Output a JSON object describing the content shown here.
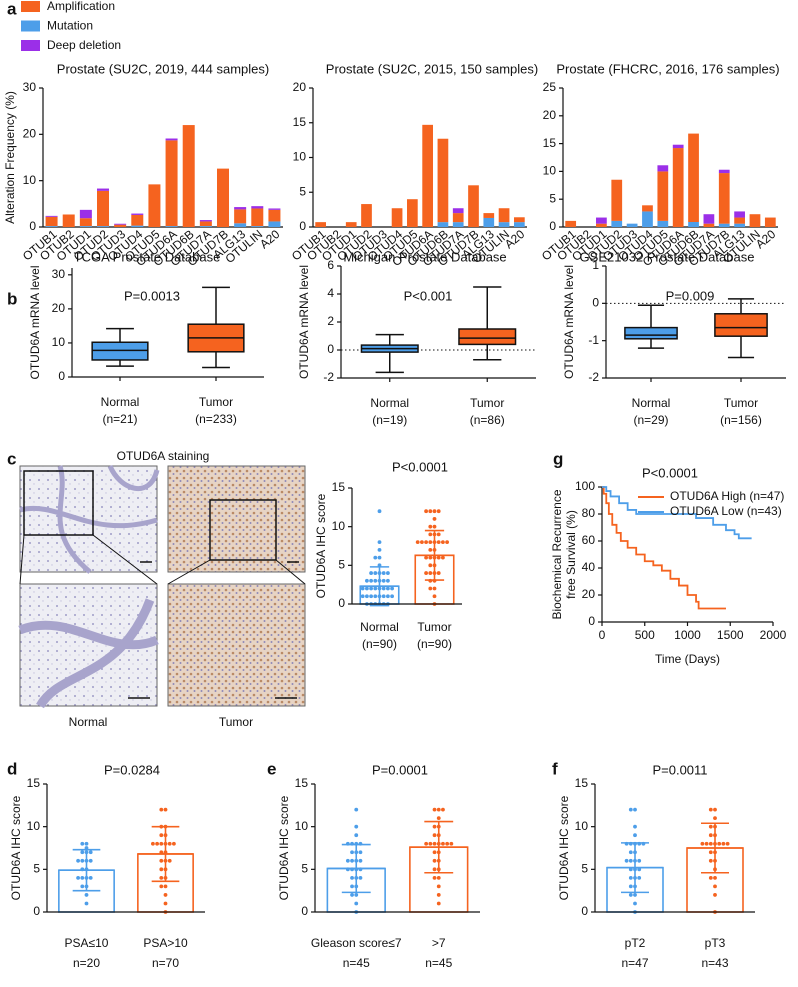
{
  "panel_c_images": {
    "title": "OTUD6A staining",
    "labels": [
      "Normal",
      "Tumor"
    ]
  },
  "chart_data": [
    {
      "type": "bar",
      "stacked": true,
      "panel": "a",
      "title": "Prostate (SU2C, 2019, 444 samples)",
      "ylabel": "Alteration Frequency (%)",
      "categories": [
        "OTUB1",
        "OTUB2",
        "OTUD1",
        "OTUD2",
        "OTUD3",
        "OTUD4",
        "OTUD5",
        "OTUD6A",
        "OTUD6B",
        "OTUD7A",
        "OTUD7B",
        "ALG13",
        "OTULIN",
        "A20"
      ],
      "ylim": [
        0,
        30
      ],
      "yticks": [
        0,
        10,
        20,
        30
      ],
      "series": [
        {
          "name": "Amplification",
          "color": "#f5631f",
          "values": [
            2.0,
            2.7,
            1.7,
            7.6,
            0.5,
            2.3,
            9.2,
            18.5,
            22,
            1.0,
            12.6,
            3.0,
            3.8,
            2.5
          ]
        },
        {
          "name": "Mutation",
          "color": "#4d9ee9",
          "values": [
            0.2,
            0,
            0.2,
            0.2,
            0,
            0.3,
            0,
            0.2,
            0,
            0.2,
            0,
            0.8,
            0.2,
            1.2
          ]
        },
        {
          "name": "Deep deletion",
          "color": "#9b2fe8",
          "values": [
            0.2,
            0,
            1.8,
            0.5,
            0.2,
            0.3,
            0,
            0.4,
            0,
            0.3,
            0,
            0.5,
            0.5,
            0.3
          ]
        }
      ]
    },
    {
      "type": "bar",
      "stacked": true,
      "title": "Prostate (SU2C, 2015, 150 samples)",
      "categories": [
        "OTUB1",
        "OTUB2",
        "OTUD1",
        "OTUD2",
        "OTUD3",
        "OTUD4",
        "OTUD5",
        "OTUD6A",
        "OTUD6B",
        "OTUD7A",
        "OTUD7B",
        "ALG13",
        "OTULIN",
        "A20"
      ],
      "ylim": [
        0,
        20
      ],
      "yticks": [
        0,
        5,
        10,
        15,
        20
      ],
      "series": [
        {
          "color": "#f5631f",
          "values": [
            0.7,
            0,
            0.7,
            3.3,
            0,
            2.7,
            4.0,
            14.7,
            12.0,
            1.3,
            6.0,
            0.7,
            2.0,
            0.7
          ]
        },
        {
          "color": "#4d9ee9",
          "values": [
            0,
            0,
            0,
            0,
            0,
            0,
            0,
            0,
            0.7,
            0.7,
            0,
            1.3,
            0.7,
            0.7
          ]
        },
        {
          "color": "#9b2fe8",
          "values": [
            0,
            0,
            0,
            0,
            0,
            0,
            0,
            0,
            0,
            0.7,
            0,
            0,
            0,
            0
          ]
        }
      ]
    },
    {
      "type": "bar",
      "stacked": true,
      "title": "Prostate (FHCRC, 2016, 176 samples)",
      "categories": [
        "OTUB1",
        "OTUB2",
        "OTUD1",
        "OTUD2",
        "OTUD3",
        "OTUD4",
        "OTUD5",
        "OTUD6A",
        "OTUD6B",
        "OTUD7A",
        "OTUD7B",
        "ALG13",
        "OTULIN",
        "A20"
      ],
      "ylim": [
        0,
        25
      ],
      "yticks": [
        0,
        5,
        10,
        15,
        20,
        25
      ],
      "series": [
        {
          "color": "#f5631f",
          "values": [
            1.1,
            0,
            0.6,
            7.4,
            0,
            1.1,
            8.9,
            14.2,
            15.9,
            0.6,
            9.1,
            1.1,
            2.3,
            1.7
          ]
        },
        {
          "color": "#4d9ee9",
          "values": [
            0,
            0,
            0,
            1.1,
            0.6,
            2.8,
            1.1,
            0,
            0.9,
            0,
            0.6,
            0.6,
            0,
            0
          ]
        },
        {
          "color": "#9b2fe8",
          "values": [
            0,
            0,
            1.1,
            0,
            0,
            0,
            1.1,
            0.6,
            0,
            1.7,
            0.6,
            1.1,
            0,
            0
          ]
        }
      ]
    },
    {
      "type": "box",
      "panel": "b",
      "title": "TCGA Prostate Database",
      "ylabel": "OTUD6A mRNA level",
      "annotation": "P=0.0013",
      "categories": [
        "Normal",
        "Tumor"
      ],
      "sample_labels": [
        "(n=21)",
        "(n=233)"
      ],
      "ylim": [
        0,
        32
      ],
      "yticks": [
        0,
        10,
        20,
        30
      ],
      "boxes": [
        {
          "min": 3.2,
          "q1": 5.0,
          "median": 7.8,
          "q3": 10.2,
          "max": 14.2,
          "color": "#4d9ee9"
        },
        {
          "min": 2.8,
          "q1": 7.4,
          "median": 11.5,
          "q3": 15.5,
          "max": 26.3,
          "color": "#f5631f"
        }
      ]
    },
    {
      "type": "box",
      "title": "Michigan Prostate Database",
      "ylabel": "OTUD6A mRNA level",
      "annotation": "P<0.001",
      "categories": [
        "Normal",
        "Tumor"
      ],
      "sample_labels": [
        "(n=19)",
        "(n=86)"
      ],
      "ylim": [
        -2,
        6
      ],
      "yticks": [
        -2,
        0,
        2,
        4,
        6
      ],
      "refline": 0,
      "boxes": [
        {
          "min": -1.6,
          "q1": -0.15,
          "median": 0.1,
          "q3": 0.35,
          "max": 1.1,
          "color": "#4d9ee9"
        },
        {
          "min": -0.7,
          "q1": 0.4,
          "median": 0.85,
          "q3": 1.5,
          "max": 4.5,
          "color": "#f5631f"
        }
      ]
    },
    {
      "type": "box",
      "title": "GSE21032 Prostate Database",
      "ylabel": "OTUD6A mRNA level",
      "annotation": "P=0.009",
      "categories": [
        "Normal",
        "Tumor"
      ],
      "sample_labels": [
        "(n=29)",
        "(n=156)"
      ],
      "ylim": [
        -2,
        1
      ],
      "yticks": [
        -2,
        -1,
        0,
        1
      ],
      "refline": 0,
      "boxes": [
        {
          "min": -1.2,
          "q1": -0.95,
          "median": -0.85,
          "q3": -0.65,
          "max": -0.05,
          "color": "#4d9ee9"
        },
        {
          "min": -1.45,
          "q1": -0.88,
          "median": -0.65,
          "q3": -0.28,
          "max": 0.12,
          "color": "#f5631f"
        }
      ]
    },
    {
      "type": "bar_scatter",
      "panel": "c",
      "ylabel": "OTUD6A IHC score",
      "annotation": "P<0.0001",
      "categories": [
        "Normal",
        "Tumor"
      ],
      "sample_labels": [
        "(n=90)",
        "(n=90)"
      ],
      "ylim": [
        0,
        15
      ],
      "yticks": [
        0,
        5,
        10,
        15
      ],
      "colors": [
        "#4d9ee9",
        "#f5631f"
      ],
      "values": [
        2.3,
        6.3
      ],
      "errors": [
        2.5,
        3.2
      ],
      "points": [
        [
          0,
          0,
          0,
          0,
          0,
          0,
          1,
          1,
          1,
          1,
          1,
          1,
          1,
          1,
          2,
          2,
          2,
          2,
          2,
          2,
          2,
          2,
          3,
          3,
          3,
          3,
          3,
          3,
          4,
          4,
          4,
          4,
          4,
          5,
          6,
          6,
          7,
          8,
          12
        ],
        [
          0,
          1,
          2,
          2,
          3,
          3,
          4,
          4,
          4,
          4,
          5,
          5,
          6,
          6,
          6,
          6,
          6,
          7,
          7,
          8,
          8,
          8,
          8,
          8,
          8,
          8,
          8,
          9,
          9,
          9,
          10,
          10,
          11,
          12,
          12,
          12,
          12
        ]
      ]
    },
    {
      "type": "line",
      "step": true,
      "panel": "g",
      "annotation": "P<0.0001",
      "ylabel": [
        "Biochemical Recurrence",
        "free Survival (%)"
      ],
      "xlabel": "Time (Days)",
      "xlim": [
        0,
        2000
      ],
      "xticks": [
        0,
        500,
        1000,
        1500,
        2000
      ],
      "ylim": [
        0,
        100
      ],
      "yticks": [
        0,
        20,
        40,
        60,
        80,
        100
      ],
      "series": [
        {
          "name": "OTUD6A High (n=47)",
          "color": "#f5631f",
          "x": [
            0,
            20,
            50,
            80,
            120,
            170,
            220,
            300,
            400,
            500,
            600,
            700,
            800,
            900,
            1000,
            1100,
            1130,
            1450
          ],
          "values": [
            100,
            95,
            88,
            80,
            72,
            66,
            60,
            55,
            50,
            45,
            42,
            38,
            32,
            27,
            20,
            15,
            10,
            10
          ]
        },
        {
          "name": "OTUD6A Low (n=43)",
          "color": "#4d9ee9",
          "x": [
            0,
            50,
            100,
            200,
            300,
            400,
            1000,
            1100,
            1300,
            1450,
            1550,
            1600,
            1750
          ],
          "values": [
            100,
            97,
            93,
            88,
            83,
            80,
            80,
            77,
            72,
            68,
            65,
            62,
            62
          ]
        }
      ]
    },
    {
      "type": "bar_scatter",
      "panel": "d",
      "ylabel": "OTUD6A IHC score",
      "annotation": "P=0.0284",
      "categories": [
        "PSA≤10",
        "PSA>10"
      ],
      "sample_labels": [
        "n=20",
        "n=70"
      ],
      "ylim": [
        0,
        15
      ],
      "yticks": [
        0,
        5,
        10,
        15
      ],
      "colors": [
        "#4d9ee9",
        "#f5631f"
      ],
      "values": [
        4.9,
        6.8
      ],
      "errors": [
        2.4,
        3.2
      ],
      "points": [
        [
          1,
          2,
          3,
          3,
          4,
          4,
          4,
          4,
          5,
          5,
          6,
          6,
          6,
          6,
          7,
          7,
          7,
          7.5,
          8,
          8
        ],
        [
          0,
          1,
          2,
          3,
          3,
          4,
          4,
          5,
          5,
          6,
          6,
          6,
          7,
          7,
          8,
          8,
          8,
          8,
          8,
          8,
          9,
          9,
          10,
          10,
          12,
          12
        ]
      ]
    },
    {
      "type": "bar_scatter",
      "panel": "e",
      "ylabel": "OTUD6A IHC score",
      "annotation": "P=0.0001",
      "categories": [
        "Gleason score≤7",
        ">7"
      ],
      "sample_labels": [
        "n=45",
        "n=45"
      ],
      "ylim": [
        0,
        15
      ],
      "yticks": [
        0,
        5,
        10,
        15
      ],
      "colors": [
        "#4d9ee9",
        "#f5631f"
      ],
      "values": [
        5.1,
        7.6
      ],
      "errors": [
        2.8,
        3.0
      ],
      "points": [
        [
          0,
          1,
          2,
          2,
          3,
          3,
          4,
          4,
          4,
          5,
          5,
          5,
          5,
          6,
          6,
          6,
          6,
          7,
          7,
          7,
          8,
          8,
          8,
          8,
          9,
          10,
          12
        ],
        [
          1,
          2,
          3,
          4,
          4,
          5,
          5,
          6,
          6,
          7,
          7,
          8,
          8,
          8,
          8,
          8,
          8,
          8,
          9,
          9,
          10,
          10,
          11,
          12,
          12,
          12
        ]
      ]
    },
    {
      "type": "bar_scatter",
      "panel": "f",
      "ylabel": "OTUD6A IHC score",
      "annotation": "P=0.0011",
      "categories": [
        "pT2",
        "pT3"
      ],
      "sample_labels": [
        "n=47",
        "n=43"
      ],
      "ylim": [
        0,
        15
      ],
      "yticks": [
        0,
        5,
        10,
        15
      ],
      "colors": [
        "#4d9ee9",
        "#f5631f"
      ],
      "values": [
        5.2,
        7.5
      ],
      "errors": [
        2.9,
        2.9
      ],
      "points": [
        [
          0,
          1,
          2,
          2,
          3,
          3,
          4,
          4,
          4,
          5,
          5,
          5,
          6,
          6,
          6,
          6,
          7,
          7,
          8,
          8,
          8,
          8,
          8,
          9,
          10,
          12,
          12
        ],
        [
          0,
          2,
          3,
          4,
          4,
          5,
          6,
          6,
          7,
          7,
          8,
          8,
          8,
          8,
          8,
          8,
          8,
          9,
          9,
          10,
          10,
          11,
          12,
          12
        ]
      ]
    }
  ]
}
